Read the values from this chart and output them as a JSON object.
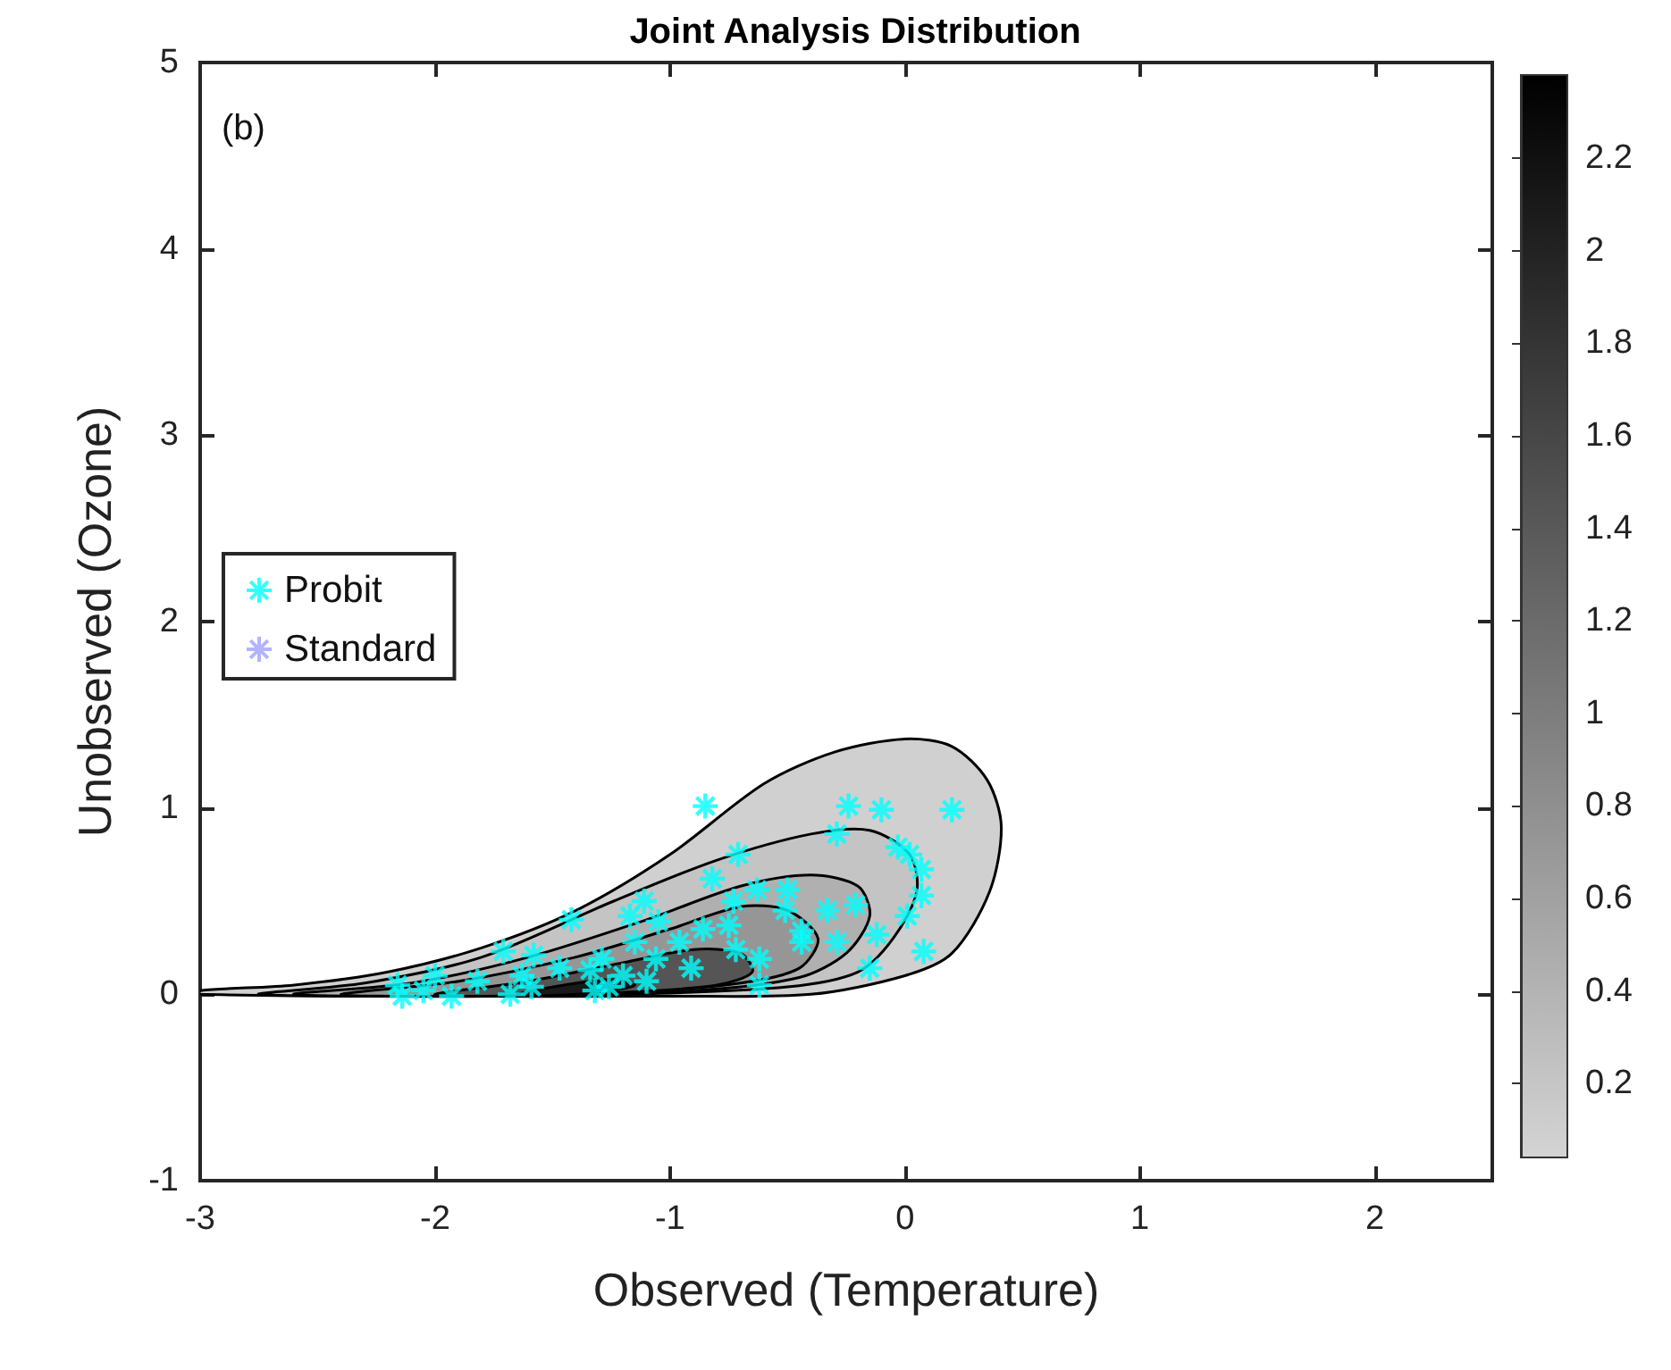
{
  "chart_data": {
    "type": "scatter",
    "title": "Joint Analysis Distribution",
    "xlabel": "Observed (Temperature)",
    "ylabel": "Unobserved (Ozone)",
    "annotations": [
      "(b)"
    ],
    "xlim": [
      -3,
      2.5
    ],
    "xticks": [
      -3,
      -2,
      -1,
      0,
      1,
      2
    ],
    "ylim": [
      -1,
      5
    ],
    "yticks": [
      -1,
      0,
      1,
      2,
      3,
      4,
      5
    ],
    "clim": [
      0.04,
      2.38
    ],
    "cticks": [
      0.2,
      0.4,
      0.6,
      0.8,
      1,
      1.2,
      1.4,
      1.6,
      1.8,
      2,
      2.2
    ],
    "grid": false,
    "legend": "left",
    "marker": "cross",
    "series": [
      {
        "type": "area",
        "marker": "none",
        "color": "#d0d0d0",
        "x": [
          -3,
          -2.6,
          -2.2,
          -1.8,
          -1.4,
          -1.0,
          -0.6,
          -0.3,
          0.0,
          0.2,
          0.35,
          0.41,
          0.36,
          0.2,
          0.0,
          -0.4,
          -1,
          -2,
          -3
        ],
        "values": [
          0.02,
          0.05,
          0.12,
          0.25,
          0.45,
          0.75,
          1.13,
          1.3,
          1.37,
          1.33,
          1.15,
          0.9,
          0.55,
          0.22,
          0.1,
          0.0,
          -0.01,
          -0.01,
          0.0
        ]
      },
      {
        "type": "area",
        "marker": "none",
        "color": "#c4c4c4",
        "x": [
          -2.75,
          -2.3,
          -1.8,
          -1.24,
          -0.8,
          -0.4,
          -0.15,
          0.02,
          0.05,
          -0.05,
          -0.2,
          -0.5,
          -1.2,
          -2.0
        ],
        "values": [
          0.0,
          0.06,
          0.2,
          0.5,
          0.72,
          0.86,
          0.88,
          0.75,
          0.55,
          0.3,
          0.12,
          0.04,
          0.0,
          -0.01
        ]
      },
      {
        "type": "area",
        "marker": "none",
        "color": "#b0b0b0",
        "x": [
          -2.6,
          -2.1,
          -1.6,
          -1.1,
          -0.7,
          -0.4,
          -0.2,
          -0.15,
          -0.25,
          -0.45,
          -0.9,
          -1.8
        ],
        "values": [
          0.0,
          0.06,
          0.2,
          0.4,
          0.58,
          0.64,
          0.58,
          0.42,
          0.22,
          0.09,
          0.02,
          -0.01
        ]
      },
      {
        "type": "area",
        "marker": "none",
        "color": "#969696",
        "x": [
          -2.4,
          -1.9,
          -1.4,
          -1.0,
          -0.7,
          -0.5,
          -0.37,
          -0.45,
          -0.7,
          -1.2,
          -2.0
        ],
        "values": [
          0.0,
          0.07,
          0.2,
          0.35,
          0.47,
          0.45,
          0.3,
          0.14,
          0.06,
          0.01,
          -0.01
        ]
      },
      {
        "type": "area",
        "marker": "none",
        "color": "#555555",
        "x": [
          -2.0,
          -1.6,
          -1.2,
          -0.9,
          -0.7,
          -0.65,
          -0.8,
          -1.2,
          -1.8
        ],
        "values": [
          0.0,
          0.07,
          0.17,
          0.24,
          0.22,
          0.12,
          0.05,
          0.01,
          -0.01
        ]
      },
      {
        "type": "area",
        "marker": "none",
        "color": "#1a1a1a",
        "x": [
          -1.65,
          -1.45,
          -1.25,
          -1.15,
          -1.3,
          -1.6
        ],
        "values": [
          0.0,
          0.05,
          0.08,
          0.05,
          0.01,
          -0.01
        ]
      },
      {
        "name": "Probit",
        "color": "#00ffff",
        "x": [
          -0.85,
          -0.24,
          -0.1,
          0.2,
          -0.29,
          -0.71,
          -0.03,
          0.02,
          0.07,
          -0.82,
          -0.63,
          -0.5,
          0.07,
          -1.11,
          -0.73,
          -0.33,
          -0.21,
          -0.51,
          -1.42,
          -1.17,
          -1.05,
          0.01,
          -0.86,
          -0.75,
          -0.44,
          -0.12,
          -0.96,
          -1.15,
          -0.44,
          -0.29,
          -0.72,
          -1.71,
          -1.58,
          0.08,
          -1.29,
          -1.06,
          -0.62,
          -1.47,
          -1.34,
          -0.91,
          -0.15,
          -1.63,
          -2.0,
          -1.82,
          -1.2,
          -1.1,
          -0.62,
          -2.16,
          -2.05,
          -2.14,
          -1.93,
          -1.68,
          -1.59,
          -1.32,
          -1.26
        ],
        "values": [
          1.01,
          1.01,
          0.99,
          0.99,
          0.86,
          0.75,
          0.79,
          0.75,
          0.67,
          0.62,
          0.56,
          0.56,
          0.53,
          0.5,
          0.5,
          0.45,
          0.48,
          0.45,
          0.4,
          0.42,
          0.39,
          0.42,
          0.35,
          0.37,
          0.34,
          0.32,
          0.28,
          0.28,
          0.28,
          0.28,
          0.24,
          0.23,
          0.21,
          0.23,
          0.19,
          0.19,
          0.19,
          0.14,
          0.13,
          0.14,
          0.14,
          0.1,
          0.1,
          0.07,
          0.1,
          0.07,
          0.05,
          0.05,
          0.02,
          -0.01,
          -0.01,
          0.0,
          0.04,
          0.02,
          0.04
        ]
      },
      {
        "name": "Standard",
        "color": "#a0a0ff"
      }
    ]
  }
}
